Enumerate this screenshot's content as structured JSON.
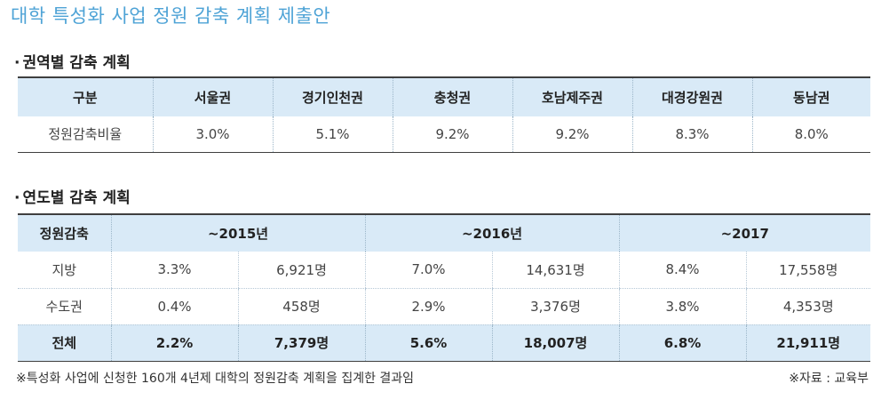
{
  "title": "대학 특성화 사업 정원 감축 계획 제출안",
  "section1": {
    "bullet": "·",
    "heading": "권역별 감축 계획"
  },
  "table1": {
    "headers": [
      "구분",
      "서울권",
      "경기인천권",
      "충청권",
      "호남제주권",
      "대경강원권",
      "동남권"
    ],
    "row": [
      "정원감축비율",
      "3.0%",
      "5.1%",
      "9.2%",
      "9.2%",
      "8.3%",
      "8.0%"
    ]
  },
  "section2": {
    "bullet": "·",
    "heading": "연도별 감축 계획"
  },
  "table2": {
    "headers": [
      "정원감축",
      "~2015년",
      "~2016년",
      "~2017"
    ],
    "rows": [
      [
        "지방",
        "3.3%",
        "6,921명",
        "7.0%",
        "14,631명",
        "8.4%",
        "17,558명"
      ],
      [
        "수도권",
        "0.4%",
        "458명",
        "2.9%",
        "3,376명",
        "3.8%",
        "4,353명"
      ],
      [
        "전체",
        "2.2%",
        "7,379명",
        "5.6%",
        "18,007명",
        "6.8%",
        "21,911명"
      ]
    ]
  },
  "notes": {
    "left": "※특성화 사업에 신청한 160개 4년제 대학의 정원감축 계획을 집계한 결과임",
    "right": "※자료 : 교육부"
  }
}
